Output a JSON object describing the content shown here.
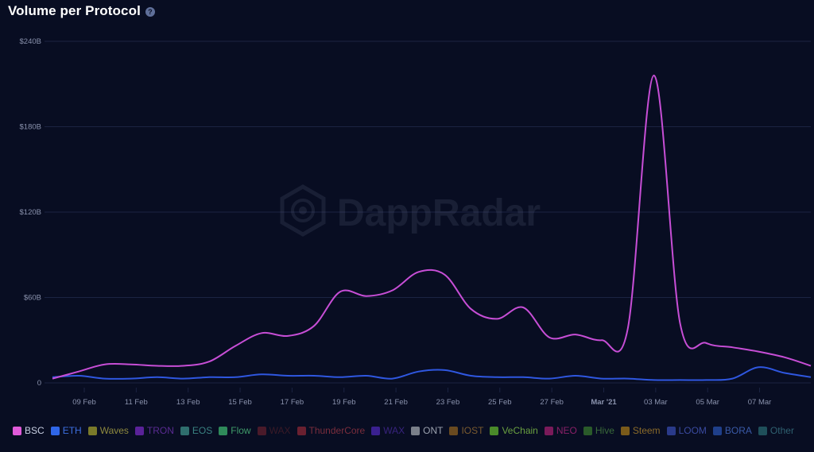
{
  "header": {
    "title": "Volume per Protocol",
    "help_icon": "question-circle-icon"
  },
  "watermark": "DappRadar",
  "colors": {
    "background": "#080d22",
    "grid": "#1b2342",
    "axis_text": "#8a92ad",
    "bsc": "#c74ed6",
    "eth": "#2f57e0"
  },
  "chart_data": {
    "type": "line",
    "title": "Volume per Protocol",
    "x_ticks": [
      "09 Feb",
      "11 Feb",
      "13 Feb",
      "15 Feb",
      "17 Feb",
      "19 Feb",
      "21 Feb",
      "23 Feb",
      "25 Feb",
      "27 Feb",
      "Mar '21",
      "03 Mar",
      "05 Mar",
      "07 Mar"
    ],
    "y_ticks": [
      "$240B",
      "$180B",
      "$120B",
      "$60B",
      "0"
    ],
    "ylim": [
      0,
      240
    ],
    "y_unit": "billions USD",
    "x_start": "08 Feb",
    "grid": true,
    "legend_position": "bottom",
    "series": [
      {
        "name": "BSC",
        "color": "#c74ed6",
        "values": [
          3,
          8,
          13,
          13,
          12,
          12,
          15,
          26,
          35,
          33,
          40,
          64,
          61,
          65,
          78,
          76,
          52,
          45,
          53,
          32,
          34,
          30,
          38,
          216,
          42,
          28,
          25,
          22,
          18,
          12
        ]
      },
      {
        "name": "ETH",
        "color": "#2f57e0",
        "values": [
          4,
          5,
          3,
          3,
          4,
          3,
          4,
          4,
          6,
          5,
          5,
          4,
          5,
          3,
          8,
          9,
          5,
          4,
          4,
          3,
          5,
          3,
          3,
          2,
          2,
          2,
          3,
          11,
          7,
          4
        ]
      }
    ],
    "legend": [
      {
        "name": "BSC",
        "color": "#e05ad9",
        "text_color": "#c9d0e3"
      },
      {
        "name": "ETH",
        "color": "#2f66e8",
        "text_color": "#3d6fe0"
      },
      {
        "name": "Waves",
        "color": "#7a7a2a",
        "text_color": "#8f8a3e"
      },
      {
        "name": "TRON",
        "color": "#5a2299",
        "text_color": "#5a2b92"
      },
      {
        "name": "EOS",
        "color": "#2f6e6e",
        "text_color": "#3a8282"
      },
      {
        "name": "Flow",
        "color": "#2f8a5a",
        "text_color": "#3f9a69"
      },
      {
        "name": "WAX",
        "color": "#4a1a2a",
        "text_color": "#3a1a27"
      },
      {
        "name": "ThunderCore",
        "color": "#6a2030",
        "text_color": "#7a2d3c"
      },
      {
        "name": "WAX",
        "color": "#3a2090",
        "text_color": "#38237e"
      },
      {
        "name": "ONT",
        "color": "#7a7f8a",
        "text_color": "#9aa0ad"
      },
      {
        "name": "IOST",
        "color": "#6a4a20",
        "text_color": "#7a5a2f"
      },
      {
        "name": "VeChain",
        "color": "#4a8a2a",
        "text_color": "#6aa040"
      },
      {
        "name": "NEO",
        "color": "#7a1a5a",
        "text_color": "#8a2068"
      },
      {
        "name": "Hive",
        "color": "#2a5a2a",
        "text_color": "#3a6a3a"
      },
      {
        "name": "Steem",
        "color": "#7a5a1a",
        "text_color": "#8a6a2a"
      },
      {
        "name": "LOOM",
        "color": "#2a3a8a",
        "text_color": "#3a4aa0"
      },
      {
        "name": "BORA",
        "color": "#1f3f8a",
        "text_color": "#3a5aa8"
      },
      {
        "name": "Other",
        "color": "#1f4f5a",
        "text_color": "#2f6070"
      }
    ]
  }
}
